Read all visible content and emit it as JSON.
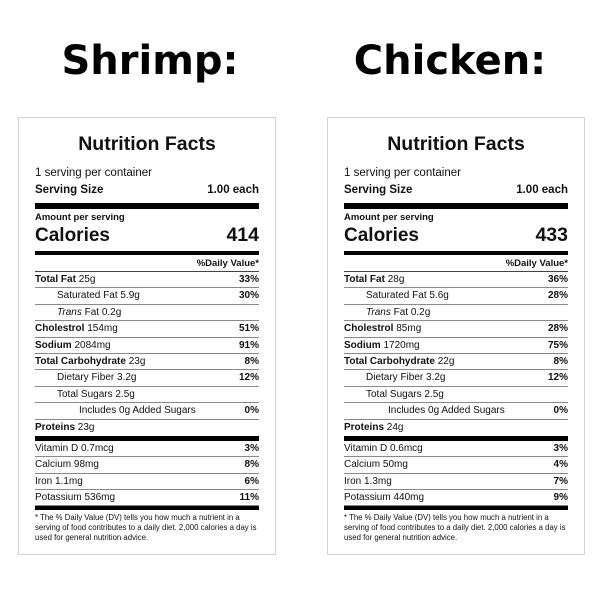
{
  "headings": {
    "left": "Shrimp:",
    "right": "Chicken:"
  },
  "labels": {
    "title": "Nutrition Facts",
    "servings": "1 serving per container",
    "serving_size": "Serving Size",
    "amount_per": "Amount per serving",
    "calories": "Calories",
    "dv_header": "%Daily Value*",
    "total_fat": "Total Fat",
    "saturated_fat": "Saturated Fat",
    "trans": "Trans",
    "trans_fat": "Fat",
    "cholestrol": "Cholestrol",
    "sodium": "Sodium",
    "total_carb": "Total Carbohydrate",
    "dietary_fiber": "Dietary Fiber",
    "total_sugars": "Total Sugars",
    "added_sugars": "Includes 0g Added Sugars",
    "proteins": "Proteins",
    "vitamin_d": "Vitamin D",
    "calcium": "Calcium",
    "iron": "Iron",
    "potassium": "Potassium",
    "footnote": "* The % Daily Value (DV) tells you how much a nutrient in a serving of food contributes to a daily diet. 2,000 calories a day is used for general nutrition advice."
  },
  "shrimp": {
    "serving_size_value": "1.00 each",
    "calories": "414",
    "total_fat": "25g",
    "total_fat_dv": "33%",
    "saturated_fat": "5.9g",
    "saturated_fat_dv": "30%",
    "trans_fat": "0.2g",
    "cholestrol": "154mg",
    "cholestrol_dv": "51%",
    "sodium": "2084mg",
    "sodium_dv": "91%",
    "total_carb": "23g",
    "total_carb_dv": "8%",
    "dietary_fiber": "3.2g",
    "dietary_fiber_dv": "12%",
    "total_sugars": "2.5g",
    "added_sugars_dv": "0%",
    "proteins": "23g",
    "vitamin_d": "0.7mcg",
    "vitamin_d_dv": "3%",
    "calcium": "98mg",
    "calcium_dv": "8%",
    "iron": "1.1mg",
    "iron_dv": "6%",
    "potassium": "536mg",
    "potassium_dv": "11%"
  },
  "chicken": {
    "serving_size_value": "1.00 each",
    "calories": "433",
    "total_fat": "28g",
    "total_fat_dv": "36%",
    "saturated_fat": "5.6g",
    "saturated_fat_dv": "28%",
    "trans_fat": "0.2g",
    "cholestrol": "85mg",
    "cholestrol_dv": "28%",
    "sodium": "1720mg",
    "sodium_dv": "75%",
    "total_carb": "22g",
    "total_carb_dv": "8%",
    "dietary_fiber": "3.2g",
    "dietary_fiber_dv": "12%",
    "total_sugars": "2.5g",
    "added_sugars_dv": "0%",
    "proteins": "24g",
    "vitamin_d": "0.6mcg",
    "vitamin_d_dv": "3%",
    "calcium": "50mg",
    "calcium_dv": "4%",
    "iron": "1.3mg",
    "iron_dv": "7%",
    "potassium": "440mg",
    "potassium_dv": "9%"
  }
}
